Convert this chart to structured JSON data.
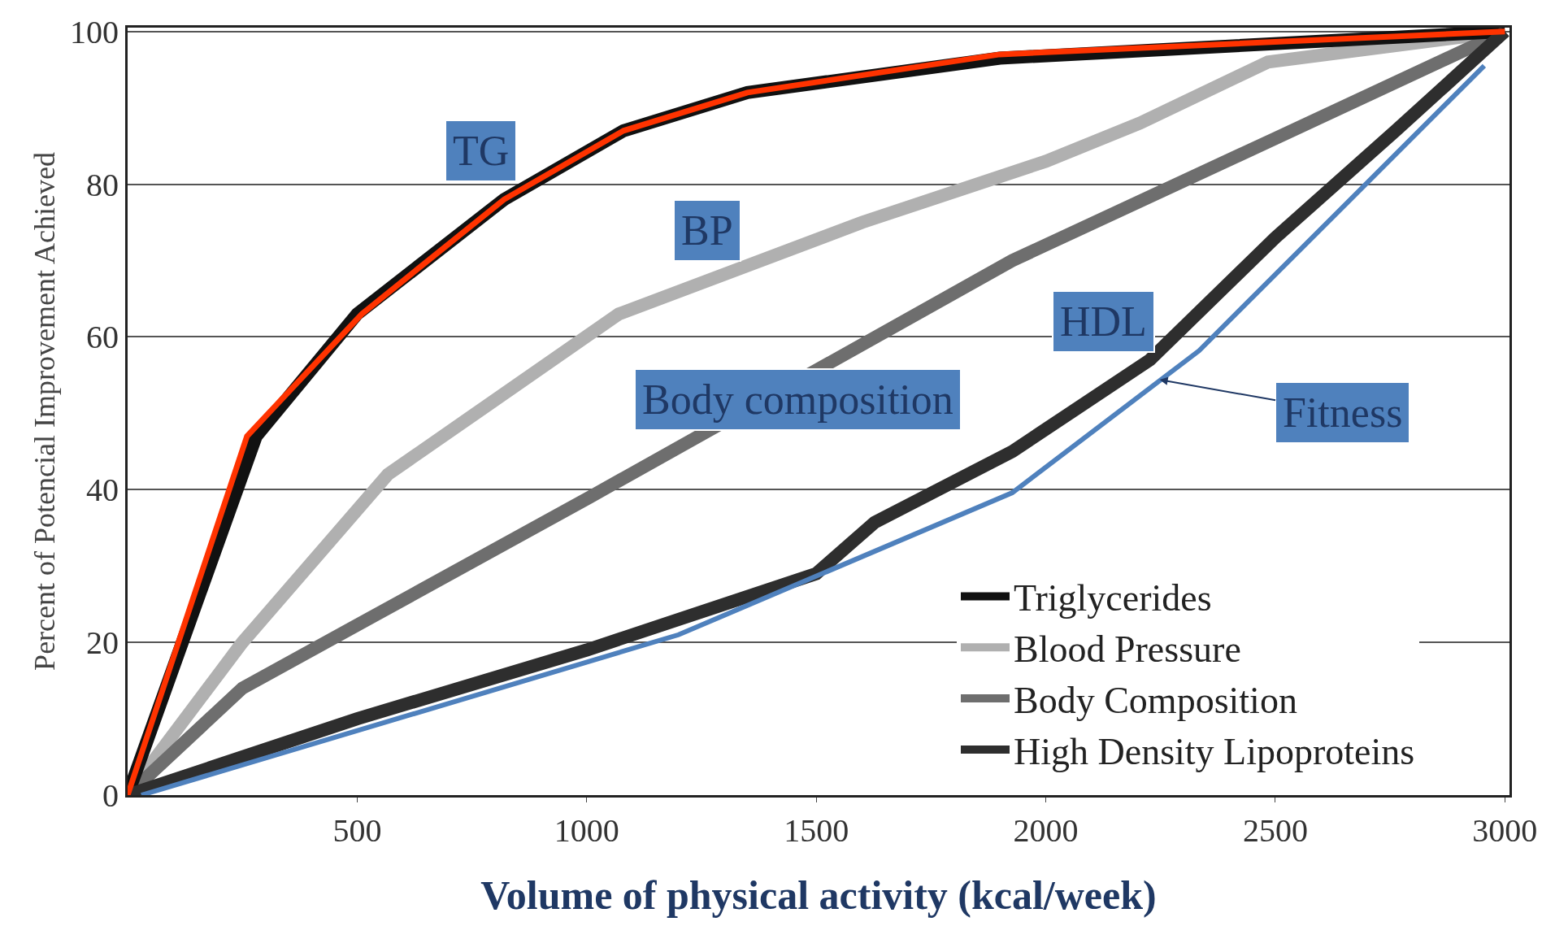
{
  "chart_data": {
    "type": "line",
    "xlabel": "Volume of physical activity (kcal/week)",
    "ylabel": "Percent of Potencial Improvement Achieved",
    "xlim": [
      0,
      3010
    ],
    "ylim": [
      0,
      100.5
    ],
    "xticks": [
      500,
      1000,
      1500,
      2000,
      2500,
      3000
    ],
    "yticks": [
      0,
      20,
      40,
      60,
      80,
      100
    ],
    "grid": "y",
    "legend": "bottom right",
    "line_style": "solid",
    "marker": "none",
    "series": [
      {
        "name": "Triglycerides",
        "color": "#111111",
        "x": [
          0,
          280,
          500,
          820,
          1080,
          1350,
          1900,
          3000
        ],
        "values": [
          0,
          47,
          63,
          78,
          87,
          92,
          96.5,
          100
        ]
      },
      {
        "name": "Blood Pressure",
        "color": "#b0b0b0",
        "x": [
          0,
          250,
          567,
          1070,
          1600,
          2000,
          2205,
          2484,
          3000
        ],
        "values": [
          0,
          20,
          42,
          63,
          75,
          83,
          88,
          96,
          100
        ]
      },
      {
        "name": "Body Composition",
        "color": "#6e6e6e",
        "x": [
          0,
          250,
          1006,
          1927,
          2500,
          3000
        ],
        "values": [
          0,
          14,
          39,
          70,
          86,
          100
        ]
      },
      {
        "name": "High Density Lipoproteins",
        "color": "#2e2e2e",
        "x": [
          0,
          500,
          1000,
          1500,
          1627,
          1927,
          2227,
          2500,
          2762,
          3000
        ],
        "values": [
          0,
          10,
          19,
          29,
          35.7,
          45,
          57,
          73,
          87,
          100
        ]
      },
      {
        "color": "#ff3300",
        "x": [
          0,
          260,
          510,
          820,
          1080,
          1350,
          1900,
          3000
        ],
        "values": [
          0,
          47,
          63,
          78,
          87,
          92,
          97,
          100
        ]
      },
      {
        "color": "#4f81bd",
        "x": [
          30,
          1200,
          1927,
          2334,
          2955
        ],
        "values": [
          0,
          21,
          39.6,
          58.2,
          95.5
        ]
      }
    ],
    "annotations": [
      "TG",
      "BP",
      "HDL",
      "Body composition",
      {
        "text": "Fitness",
        "x": 2248,
        "y": 54.4
      }
    ]
  }
}
